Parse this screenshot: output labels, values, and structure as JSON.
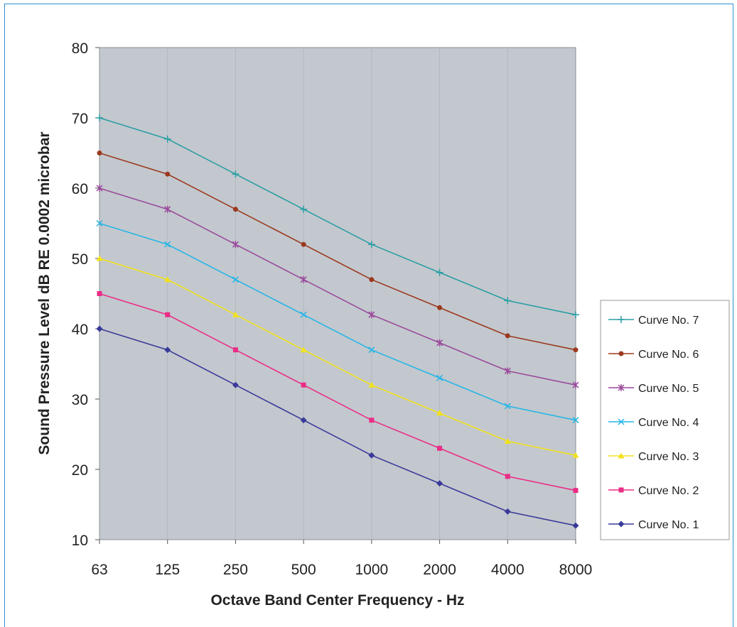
{
  "chart_data": {
    "type": "line",
    "xlabel": "Octave Band Center Frequency - Hz",
    "ylabel": "Sound Pressure Level dB RE 0.0002 microbar",
    "categories": [
      "63",
      "125",
      "250",
      "500",
      "1000",
      "2000",
      "4000",
      "8000"
    ],
    "ylim": [
      10,
      80
    ],
    "yticks": [
      "10",
      "20",
      "30",
      "40",
      "50",
      "60",
      "70",
      "80"
    ],
    "grid": true,
    "legend_position": "right",
    "series": [
      {
        "name": "Curve No. 7",
        "color": "#2a9ea4",
        "marker": "plus",
        "values": [
          70,
          67,
          62,
          57,
          52,
          48,
          44,
          42
        ]
      },
      {
        "name": "Curve No. 6",
        "color": "#9b3a1f",
        "marker": "circle",
        "values": [
          65,
          62,
          57,
          52,
          47,
          43,
          39,
          37
        ]
      },
      {
        "name": "Curve No. 5",
        "color": "#9a4a9c",
        "marker": "star",
        "values": [
          60,
          57,
          52,
          47,
          42,
          38,
          34,
          32
        ]
      },
      {
        "name": "Curve No. 4",
        "color": "#25b6e6",
        "marker": "x",
        "values": [
          55,
          52,
          47,
          42,
          37,
          33,
          29,
          27
        ]
      },
      {
        "name": "Curve No. 3",
        "color": "#f2e21a",
        "marker": "triangle",
        "values": [
          50,
          47,
          42,
          37,
          32,
          28,
          24,
          22
        ]
      },
      {
        "name": "Curve No. 2",
        "color": "#ea2d86",
        "marker": "square",
        "values": [
          45,
          42,
          37,
          32,
          27,
          23,
          19,
          17
        ]
      },
      {
        "name": "Curve No. 1",
        "color": "#3a3a9a",
        "marker": "diamond",
        "values": [
          40,
          37,
          32,
          27,
          22,
          18,
          14,
          12
        ]
      }
    ],
    "colors": {
      "plot_background": "#c3c8ce",
      "grid": "#b2b8be"
    }
  }
}
